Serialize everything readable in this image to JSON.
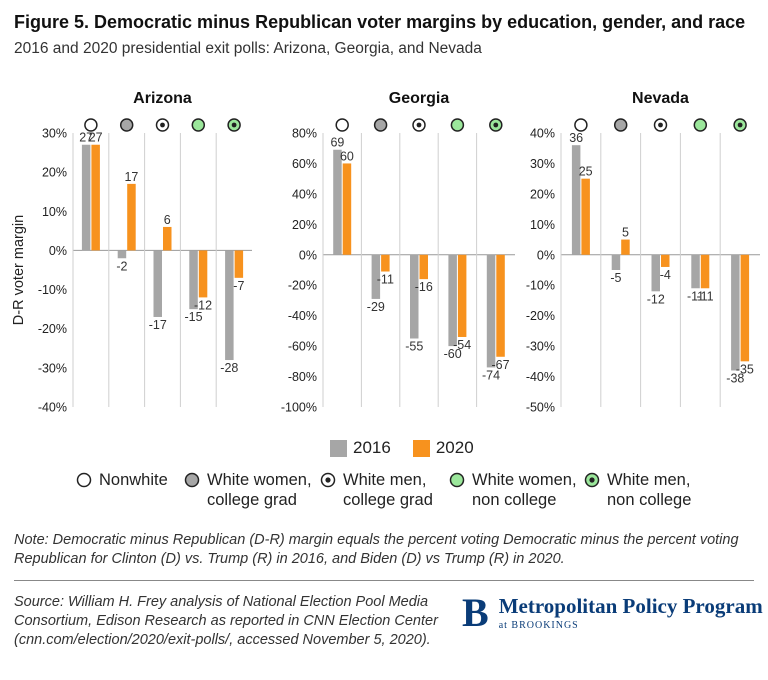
{
  "header": {
    "title": "Figure 5. Democratic minus Republican voter margins by education, gender, and race",
    "subtitle": "2016 and 2020 presidential exit polls: Arizona, Georgia, and Nevada"
  },
  "chart_data": [
    {
      "type": "bar",
      "title": "Arizona",
      "ylabel": "D-R voter margin",
      "ylim": [
        -40,
        30
      ],
      "ytick_labels": [
        "30%",
        "20%",
        "10%",
        "0%",
        "-10%",
        "-20%",
        "-30%",
        "-40%"
      ],
      "categories": [
        "Nonwhite",
        "White women, college grad",
        "White men, college grad",
        "White women, non college",
        "White men, non college"
      ],
      "series": [
        {
          "name": "2016",
          "values": [
            27,
            -2,
            -17,
            -15,
            -28
          ]
        },
        {
          "name": "2020",
          "values": [
            27,
            17,
            6,
            -12,
            -7
          ]
        }
      ]
    },
    {
      "type": "bar",
      "title": "Georgia",
      "ylim": [
        -100,
        80
      ],
      "ytick_labels": [
        "80%",
        "60%",
        "40%",
        "20%",
        "0%",
        "-20%",
        "-40%",
        "-60%",
        "-80%",
        "-100%"
      ],
      "categories": [
        "Nonwhite",
        "White women, college grad",
        "White men, college grad",
        "White women, non college",
        "White men, non college"
      ],
      "series": [
        {
          "name": "2016",
          "values": [
            69,
            -29,
            -55,
            -60,
            -74
          ]
        },
        {
          "name": "2020",
          "values": [
            60,
            -11,
            -16,
            -54,
            -67
          ]
        }
      ]
    },
    {
      "type": "bar",
      "title": "Nevada",
      "ylim": [
        -50,
        40
      ],
      "ytick_labels": [
        "40%",
        "30%",
        "20%",
        "10%",
        "0%",
        "-10%",
        "-20%",
        "-30%",
        "-40%",
        "-50%"
      ],
      "categories": [
        "Nonwhite",
        "White women, college grad",
        "White men, college grad",
        "White women, non college",
        "White men, non college"
      ],
      "series": [
        {
          "name": "2016",
          "values": [
            36,
            -5,
            -12,
            -11,
            -38
          ]
        },
        {
          "name": "2020",
          "values": [
            25,
            5,
            -4,
            -11,
            -35
          ]
        }
      ]
    }
  ],
  "legend": {
    "series": [
      {
        "label": "2016",
        "color": "#a6a6a6"
      },
      {
        "label": "2020",
        "color": "#f7921e"
      }
    ],
    "groups": [
      {
        "line1": "Nonwhite",
        "line2": "",
        "icon": "open-circle-icon"
      },
      {
        "line1": "White women,",
        "line2": "college grad",
        "icon": "gray-circle-icon"
      },
      {
        "line1": "White men,",
        "line2": "college grad",
        "icon": "dotted-circle-icon"
      },
      {
        "line1": "White women,",
        "line2": "non college",
        "icon": "green-circle-icon"
      },
      {
        "line1": "White men,",
        "line2": "non college",
        "icon": "green-dotted-circle-icon"
      }
    ]
  },
  "colors": {
    "y2016": "#a6a6a6",
    "y2020": "#f7921e",
    "green": "#9be79b",
    "gray": "#a6a6a6",
    "brand": "#0a3c78"
  },
  "note": "Note: Democratic minus Republican (D-R) margin equals the percent voting Democratic minus the percent voting Republican for Clinton (D) vs. Trump (R) in 2016, and Biden (D) vs Trump (R) in 2020.",
  "source": "Source: William H. Frey analysis of National Election Pool Media Consortium, Edison Research as reported in CNN Election Center (cnn.com/election/2020/exit-polls/, accessed November 5, 2020).",
  "logo": {
    "mark": "B",
    "name": "Metropolitan Policy Program",
    "sub": "at BROOKINGS"
  }
}
